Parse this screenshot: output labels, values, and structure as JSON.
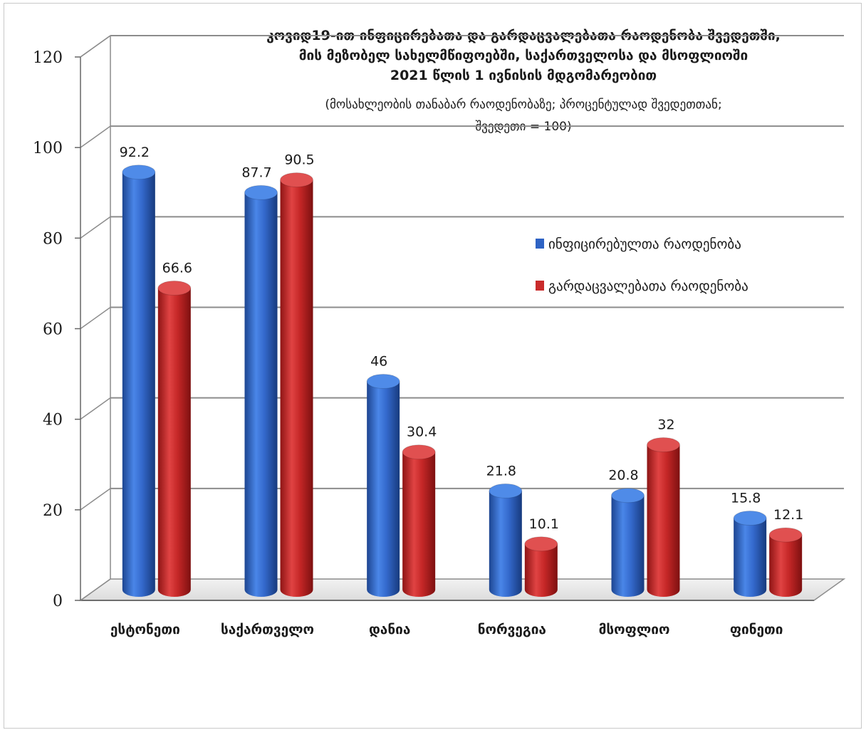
{
  "chart_data": {
    "type": "bar",
    "title_lines": [
      "კოვიდ19-ით ინფიცირებათა და გარდაცვალებათა რაოდენობა შვედეთში,",
      "მის მეზობელ სახელმწიფოებში, საქართველოსა და მსოფლიოში",
      "2021 წლის 1 ივნისის მდგომარეობით"
    ],
    "subtitle_lines": [
      "(მოსახლეობის თანაბარ რაოდენობაზე; პროცენტულად შვედეთთან;",
      "შვედეთი = 100)"
    ],
    "categories": [
      "ესტონეთი",
      "საქართველო",
      "დანია",
      "ნორვეგია",
      "მსოფლიო",
      "ფინეთი"
    ],
    "series": [
      {
        "name": "ინფიცირებულთა რაოდენობა",
        "values": [
          92.2,
          87.7,
          46,
          21.8,
          20.8,
          15.8
        ],
        "color": "#2e63c4"
      },
      {
        "name": "გარდაცვალებათა რაოდენობა",
        "values": [
          66.6,
          90.5,
          30.4,
          10.1,
          32,
          12.1
        ],
        "color": "#c92b2b"
      }
    ],
    "ylim": [
      0,
      120
    ],
    "yticks": [
      0,
      20,
      40,
      60,
      80,
      100,
      120
    ],
    "ytick_labels": [
      "0",
      "20",
      "40",
      "60",
      "80",
      "100",
      "120"
    ],
    "grid": true,
    "legend_position": "right",
    "style": "3d-cylinder"
  }
}
